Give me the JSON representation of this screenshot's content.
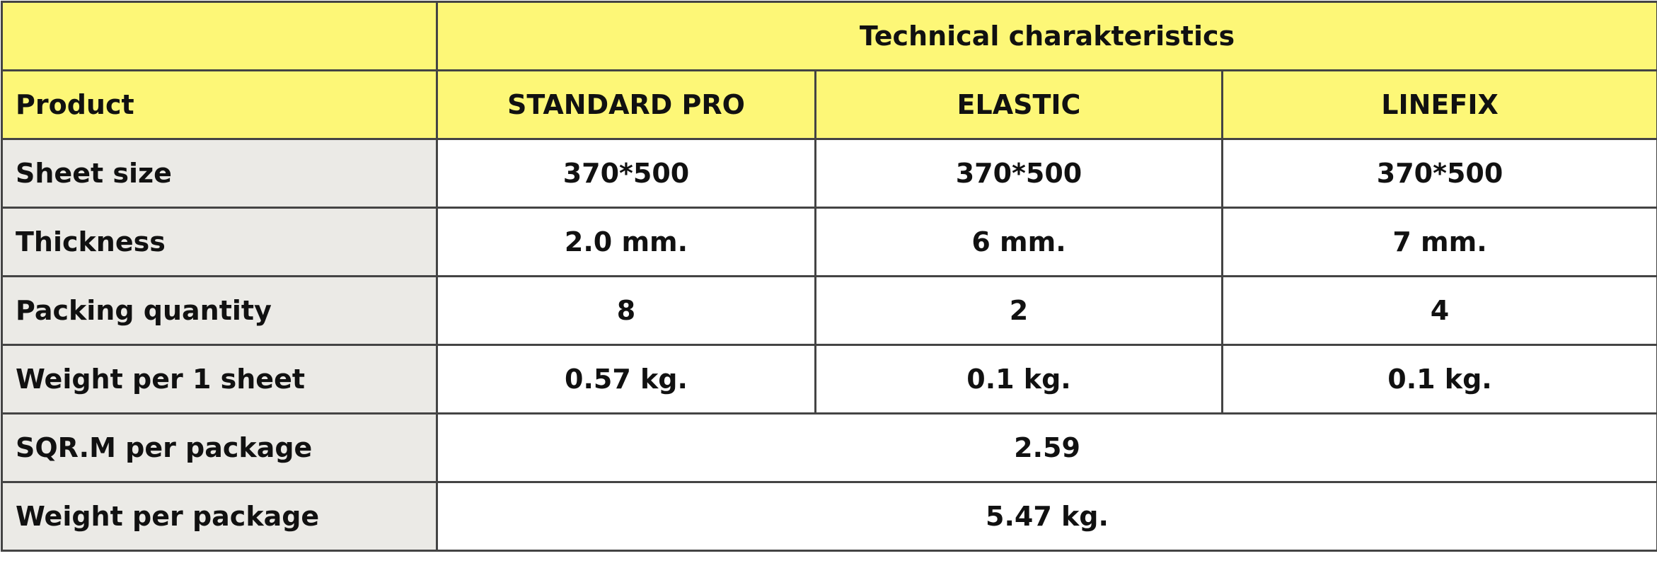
{
  "header": {
    "title": "Technical charakteristics"
  },
  "table": {
    "columns": [
      "Product",
      "STANDARD PRO",
      "ELASTIC",
      "LINEFIX"
    ],
    "rows": [
      [
        "Sheet size",
        "370*500",
        "370*500",
        "370*500"
      ],
      [
        "Thickness",
        "2.0 mm.",
        "6 mm.",
        "7 mm."
      ],
      [
        "Packing quantity",
        "8",
        "2",
        "4"
      ],
      [
        "Weight per 1 sheet",
        "0.57 kg.",
        "0.1 kg.",
        "0.1 kg."
      ],
      [
        "SQR.M per package",
        "2.59"
      ],
      [
        "Weight per package",
        "5.47 kg."
      ]
    ]
  }
}
